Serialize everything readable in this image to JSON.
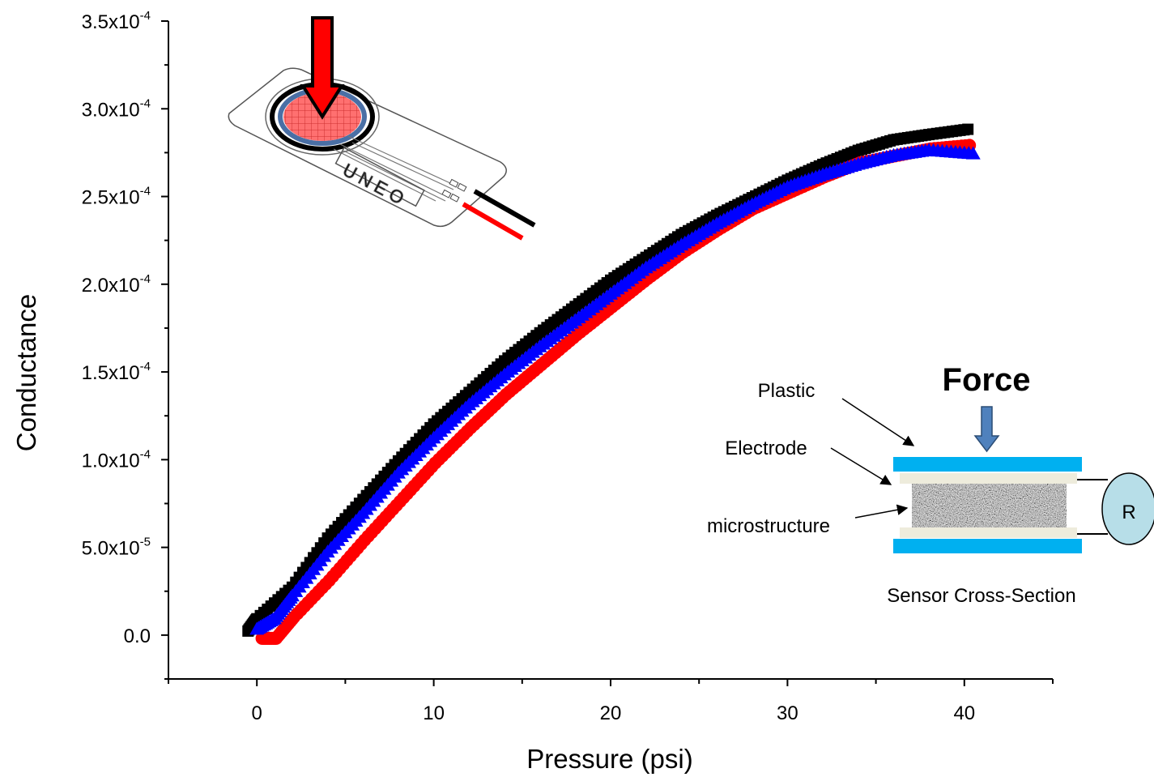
{
  "chart_data": {
    "type": "scatter",
    "title": "",
    "xlabel": "Pressure (psi)",
    "ylabel": "Conductance",
    "xlim": [
      -5,
      45
    ],
    "ylim": [
      -2.5e-05,
      0.00035
    ],
    "x_ticks": [
      {
        "value": 0,
        "label": "0"
      },
      {
        "value": 10,
        "label": "10"
      },
      {
        "value": 20,
        "label": "20"
      },
      {
        "value": 30,
        "label": "30"
      },
      {
        "value": 40,
        "label": "40"
      }
    ],
    "y_ticks": [
      {
        "value": 0,
        "mant": "0.0",
        "exp": ""
      },
      {
        "value": 5e-05,
        "mant": "5.0x10",
        "exp": "-5"
      },
      {
        "value": 0.0001,
        "mant": "1.0x10",
        "exp": "-4"
      },
      {
        "value": 0.00015,
        "mant": "1.5x10",
        "exp": "-4"
      },
      {
        "value": 0.0002,
        "mant": "2.0x10",
        "exp": "-4"
      },
      {
        "value": 0.00025,
        "mant": "2.5x10",
        "exp": "-4"
      },
      {
        "value": 0.0003,
        "mant": "3.0x10",
        "exp": "-4"
      },
      {
        "value": 0.00035,
        "mant": "3.5x10",
        "exp": "-4"
      }
    ],
    "grid": false,
    "legend": "none",
    "series": [
      {
        "marker": "square",
        "color": "#000000",
        "x": [
          -0.5,
          0,
          2,
          4,
          6,
          8,
          10,
          12,
          14,
          16,
          18,
          20,
          22,
          24,
          26,
          28,
          30,
          32,
          34,
          36,
          38,
          40.2
        ],
        "y": [
          0.0,
          7e-06,
          2.5e-05,
          5.3e-05,
          7.5e-05,
          9.7e-05,
          0.000118,
          0.000136,
          0.000154,
          0.00017,
          0.000185,
          0.0002,
          0.000213,
          0.000226,
          0.000237,
          0.000247,
          0.000257,
          0.000266,
          0.000274,
          0.00028,
          0.000283,
          0.000286
        ]
      },
      {
        "marker": "circle",
        "color": "#ff0000",
        "x": [
          0.2,
          1,
          2,
          4,
          6,
          8,
          10,
          12,
          14,
          16,
          18,
          20,
          22,
          24,
          26,
          28,
          30,
          32,
          34,
          36,
          38,
          40.2
        ],
        "y": [
          0.0,
          0.0,
          1.2e-05,
          3.3e-05,
          5.6e-05,
          7.8e-05,
          0.0001,
          0.00012,
          0.000139,
          0.000156,
          0.000173,
          0.000189,
          0.000205,
          0.00022,
          0.000233,
          0.000245,
          0.000254,
          0.000263,
          0.000271,
          0.000275,
          0.000279,
          0.000281
        ]
      },
      {
        "marker": "triangle",
        "color": "#0000ff",
        "x": [
          0,
          1,
          2,
          4,
          6,
          8,
          10,
          12,
          14,
          16,
          18,
          20,
          22,
          24,
          26,
          28,
          30,
          32,
          34,
          36,
          38,
          40.5
        ],
        "y": [
          3e-06,
          9e-06,
          2.2e-05,
          4.7e-05,
          6.9e-05,
          9.2e-05,
          0.000112,
          0.000131,
          0.000148,
          0.000164,
          0.000179,
          0.000194,
          0.000209,
          0.000222,
          0.000234,
          0.000245,
          0.000255,
          0.000262,
          0.000268,
          0.000273,
          0.000276,
          0.000274
        ]
      }
    ]
  },
  "inset_sensor": {
    "logo_text": "UNEO",
    "press_arrow_color": "#ff0000",
    "lead_colors": [
      "#000000",
      "#ff0000"
    ]
  },
  "inset_cross_section": {
    "force_label": "Force",
    "plastic_label": "Plastic",
    "electrode_label": "Electrode",
    "microstructure_label": "microstructure",
    "caption": "Sensor Cross-Section",
    "resistor_label": "R",
    "plastic_color": "#00b0f0",
    "electrode_color": "#eeecdc",
    "force_arrow_color": "#4f81bd",
    "resistor_color": "#b7dee8"
  }
}
